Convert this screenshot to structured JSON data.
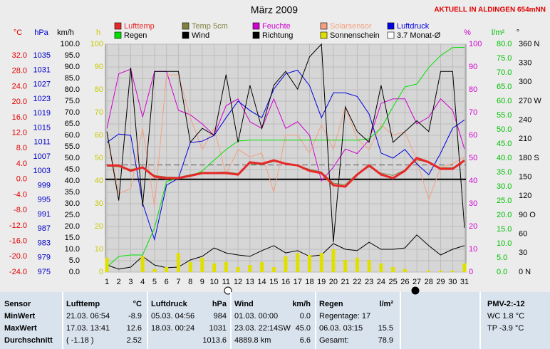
{
  "chart_data": {
    "type": "line",
    "title": "März 2009",
    "subtitle": "AKTUELL IN ALDINGEN 654mNN",
    "x": [
      1,
      2,
      3,
      4,
      5,
      6,
      7,
      8,
      9,
      10,
      11,
      12,
      13,
      14,
      15,
      16,
      17,
      18,
      19,
      20,
      21,
      22,
      23,
      24,
      25,
      26,
      27,
      28,
      29,
      30,
      31
    ],
    "xlim": [
      1,
      31
    ],
    "grid": true,
    "yaxes": [
      {
        "label": "°C",
        "color": "#e00000",
        "ylim": [
          -24,
          34.95
        ],
        "yticks": [
          {
            "value": 32,
            "label": "32.0"
          },
          {
            "value": 28,
            "label": "28.0"
          },
          {
            "value": 24,
            "label": "24.0"
          },
          {
            "value": 20,
            "label": "20.0"
          },
          {
            "value": 16,
            "label": "16.0"
          },
          {
            "value": 12,
            "label": "12.0"
          },
          {
            "value": 8,
            "label": "8.0"
          },
          {
            "value": 4,
            "label": "4.0"
          },
          {
            "value": 0,
            "label": "0.0"
          },
          {
            "value": -4,
            "label": "-4.0"
          },
          {
            "value": -8,
            "label": "-8.0"
          },
          {
            "value": -12,
            "label": "-12.0"
          },
          {
            "value": -16,
            "label": "-16.0"
          },
          {
            "value": -20,
            "label": "-20.0"
          },
          {
            "value": -24,
            "label": "-24.0"
          }
        ]
      },
      {
        "label": "hPa",
        "color": "#0000c8",
        "ylim": [
          975,
          1038.2
        ],
        "yticks": [
          1035,
          1031,
          1027,
          1023,
          1019,
          1015,
          1011,
          1007,
          1003,
          999,
          995,
          991,
          987,
          983,
          979,
          975
        ]
      },
      {
        "label": "km/h",
        "color": "#000000",
        "ylim": [
          0,
          100
        ],
        "yticks": [
          {
            "value": 100,
            "label": "100.0"
          },
          {
            "value": 95,
            "label": "95.0"
          },
          {
            "value": 90,
            "label": "90.0"
          },
          {
            "value": 85,
            "label": "85.0"
          },
          {
            "value": 80,
            "label": "80.0"
          },
          {
            "value": 75,
            "label": "75.0"
          },
          {
            "value": 70,
            "label": "70.0"
          },
          {
            "value": 65,
            "label": "65.0"
          },
          {
            "value": 60,
            "label": "60.0"
          },
          {
            "value": 55,
            "label": "55.0"
          },
          {
            "value": 50,
            "label": "50.0"
          },
          {
            "value": 45,
            "label": "45.0"
          },
          {
            "value": 40,
            "label": "40.0"
          },
          {
            "value": 35,
            "label": "35.0"
          },
          {
            "value": 30,
            "label": "30.0"
          },
          {
            "value": 25,
            "label": "25.0"
          },
          {
            "value": 20,
            "label": "20.0"
          },
          {
            "value": 15,
            "label": "15.0"
          },
          {
            "value": 10,
            "label": "10.0"
          },
          {
            "value": 5,
            "label": "5.0"
          },
          {
            "value": 0,
            "label": "0.0"
          }
        ]
      },
      {
        "label": "h",
        "color": "#c8c800",
        "ylim": [
          0,
          100
        ],
        "yticks": [
          100,
          90,
          80,
          70,
          60,
          50,
          40,
          30,
          20,
          10,
          0
        ]
      },
      {
        "label": "%",
        "color": "#d000d0",
        "ylim": [
          0,
          100
        ],
        "yticks": [
          100,
          90,
          80,
          70,
          60,
          50,
          40,
          30,
          20,
          10,
          0
        ]
      },
      {
        "label": "l/m²",
        "color": "#00c000",
        "ylim": [
          0,
          80
        ],
        "yticks": [
          {
            "value": 80,
            "label": "80.0"
          },
          {
            "value": 75,
            "label": "75.0"
          },
          {
            "value": 70,
            "label": "70.0"
          },
          {
            "value": 65,
            "label": "65.0"
          },
          {
            "value": 60,
            "label": "60.0"
          },
          {
            "value": 55,
            "label": "55.0"
          },
          {
            "value": 50,
            "label": "50.0"
          },
          {
            "value": 45,
            "label": "45.0"
          },
          {
            "value": 40,
            "label": "40.0"
          },
          {
            "value": 35,
            "label": "35.0"
          },
          {
            "value": 30,
            "label": "30.0"
          },
          {
            "value": 25,
            "label": "25.0"
          },
          {
            "value": 20,
            "label": "20.0"
          },
          {
            "value": 15,
            "label": "15.0"
          },
          {
            "value": 10,
            "label": "10.0"
          },
          {
            "value": 5,
            "label": "5.0"
          },
          {
            "value": 0,
            "label": "0.0"
          }
        ]
      },
      {
        "label": "°",
        "color": "#000000",
        "ylim": [
          0,
          360
        ],
        "yticks": [
          {
            "value": 360,
            "label": "360 N"
          },
          330,
          300,
          {
            "value": 270,
            "label": "270 W"
          },
          240,
          210,
          {
            "value": 180,
            "label": "180 S"
          },
          150,
          120,
          {
            "value": 90,
            "label": "90 O"
          },
          60,
          30,
          {
            "value": 0,
            "label": "0 N"
          }
        ]
      }
    ],
    "series": [
      {
        "name": "Lufttemp",
        "color": "#e82828",
        "axis": 0,
        "style": "thick",
        "values": [
          3.6,
          3.6,
          2.2,
          3.1,
          0.7,
          0.3,
          0.3,
          0.9,
          1.6,
          1.6,
          1.6,
          1.2,
          4.4,
          4.0,
          4.9,
          4.0,
          3.6,
          2.2,
          1.6,
          -1.5,
          -1.9,
          1.2,
          3.6,
          1.2,
          0.3,
          2.2,
          5.5,
          4.4,
          2.7,
          2.7,
          4.9
        ]
      },
      {
        "name": "Temp 5cm",
        "color": "#808040",
        "axis": 0,
        "style": "line",
        "values": [
          3.4,
          3.2,
          2.6,
          3.0,
          1.0,
          0.6,
          0.5,
          1.2,
          1.8,
          1.8,
          1.9,
          1.5,
          4.0,
          3.8,
          4.6,
          4.1,
          3.5,
          2.6,
          1.9,
          -1.0,
          -1.4,
          1.5,
          3.2,
          1.6,
          1.0,
          2.4,
          5.0,
          4.4,
          3.0,
          3.0,
          4.6
        ]
      },
      {
        "name": "Feuchte",
        "color": "#d000d0",
        "axis": 4,
        "style": "line",
        "values": [
          63,
          87,
          89,
          68,
          88,
          88,
          71,
          69,
          65,
          60,
          73,
          76,
          66,
          63,
          76,
          63,
          66,
          60,
          40,
          46,
          54,
          52,
          58,
          74,
          76,
          76,
          65,
          68,
          76,
          71,
          54
        ]
      },
      {
        "name": "Solarsensor",
        "color": "#f4a080",
        "axis": 0,
        "style": "line",
        "values": [
          12.3,
          -3.7,
          -2.4,
          13.2,
          -7.1,
          27.0,
          27.0,
          16.0,
          7.7,
          13.2,
          1.2,
          7.7,
          5.8,
          6.8,
          -3.4,
          11.4,
          11.4,
          6.8,
          14.1,
          7.7,
          18.7,
          10.4,
          7.7,
          14.1,
          11.4,
          12.3,
          4.9,
          -5.2,
          3.1,
          4.0,
          5.8
        ]
      },
      {
        "name": "Luftdruck",
        "color": "#0000e0",
        "axis": 1,
        "style": "line",
        "values": [
          1010.9,
          1013.3,
          1012.9,
          994.1,
          984,
          999.1,
          1001.0,
          1010.9,
          1011.3,
          1012.9,
          1017.8,
          1022.4,
          1019.8,
          1017.8,
          1025.7,
          1030,
          1031,
          1026.7,
          1017.8,
          1024.7,
          1024.7,
          1023.7,
          1018.8,
          1008.0,
          1006.6,
          1009.0,
          1005.0,
          1002.0,
          1008.0,
          1014.9,
          1017.2
        ]
      },
      {
        "name": "Regen",
        "color": "#00e000",
        "axis": 5,
        "style": "line",
        "values": [
          1.8,
          5.5,
          6,
          6,
          15.5,
          31.8,
          33,
          33.5,
          35.5,
          39.3,
          43,
          46,
          46.3,
          46.3,
          46.3,
          46.3,
          46.3,
          46.3,
          46.3,
          46.3,
          46.3,
          46.3,
          46.8,
          50.5,
          58,
          65,
          66,
          71.8,
          76,
          78.8,
          78.9
        ]
      },
      {
        "name": "Wind",
        "color": "#000000",
        "axis": 2,
        "style": "line",
        "values": [
          3.1,
          1.3,
          2.2,
          6.9,
          3.1,
          1.9,
          2.2,
          5.3,
          6.9,
          10.6,
          8.4,
          7.5,
          6.9,
          9.4,
          11.6,
          8.4,
          9.4,
          6.9,
          7.5,
          12.5,
          10,
          9.4,
          13.1,
          10,
          10,
          10.6,
          16.3,
          11.6,
          7.5,
          10,
          11.6
        ]
      },
      {
        "name": "Richtung",
        "color": "#000000",
        "axis": 6,
        "style": "line",
        "values": [
          222,
          113,
          323,
          104,
          317,
          317,
          317,
          205,
          227,
          216,
          312,
          205,
          295,
          227,
          295,
          317,
          289,
          340,
          360,
          47,
          261,
          222,
          205,
          295,
          205,
          222,
          239,
          222,
          317,
          317,
          70
        ]
      },
      {
        "name": "Sonnenschein",
        "color": "#e0e000",
        "axis": 3,
        "style": "bar",
        "values": [
          6.3,
          0,
          0,
          6.9,
          1.3,
          2.2,
          8.4,
          4.4,
          6.3,
          3.8,
          4.4,
          2.2,
          3.1,
          4.4,
          2.2,
          6.9,
          8.4,
          7.5,
          8.4,
          10,
          5.3,
          6.3,
          5.3,
          3.8,
          2.2,
          1.3,
          0,
          0.6,
          0.6,
          0.6,
          3.8
        ]
      }
    ],
    "reference": {
      "name": "3.7 Monat-Ø",
      "value": 3.7,
      "axis": 0
    }
  },
  "table": {
    "header": {
      "sensor": "Sensor",
      "cols": [
        {
          "left": "Lufttemp",
          "right": "°C"
        },
        {
          "left": "Luftdruck",
          "right": "hPa"
        },
        {
          "left": "Wind",
          "right": "km/h"
        },
        {
          "left": "Regen",
          "right": "l/m²"
        }
      ],
      "side": "PMV-2:-12"
    },
    "rows": [
      {
        "label": "MinWert",
        "cells": [
          {
            "left": "21.03.  06:54",
            "right": "-8.9"
          },
          {
            "left": "05.03.  04:56",
            "right": "984"
          },
          {
            "left": "01.03.  00:00",
            "right": "0.0"
          },
          {
            "left": "Regentage: 17"
          }
        ],
        "side": "WC 1.8 °C"
      },
      {
        "label": "MaxWert",
        "cells": [
          {
            "left": "17.03.  13:41",
            "right": "12.6"
          },
          {
            "left": "18.03.  00:24",
            "right": "1031"
          },
          {
            "left": "23.03.  22:14SW",
            "right": "45.0"
          },
          {
            "left": "06.03.  03:15",
            "right": "15.5"
          }
        ],
        "side": "TP -3.9 °C"
      },
      {
        "label": "Durchschnitt",
        "cells": [
          {
            "left": "( -1.18 )",
            "right": "2.52"
          },
          {
            "right": "1013.6"
          },
          {
            "left": "4889.8 km",
            "right": "6.6"
          },
          {
            "left": "Gesamt:",
            "right": "78.9"
          }
        ]
      }
    ]
  }
}
